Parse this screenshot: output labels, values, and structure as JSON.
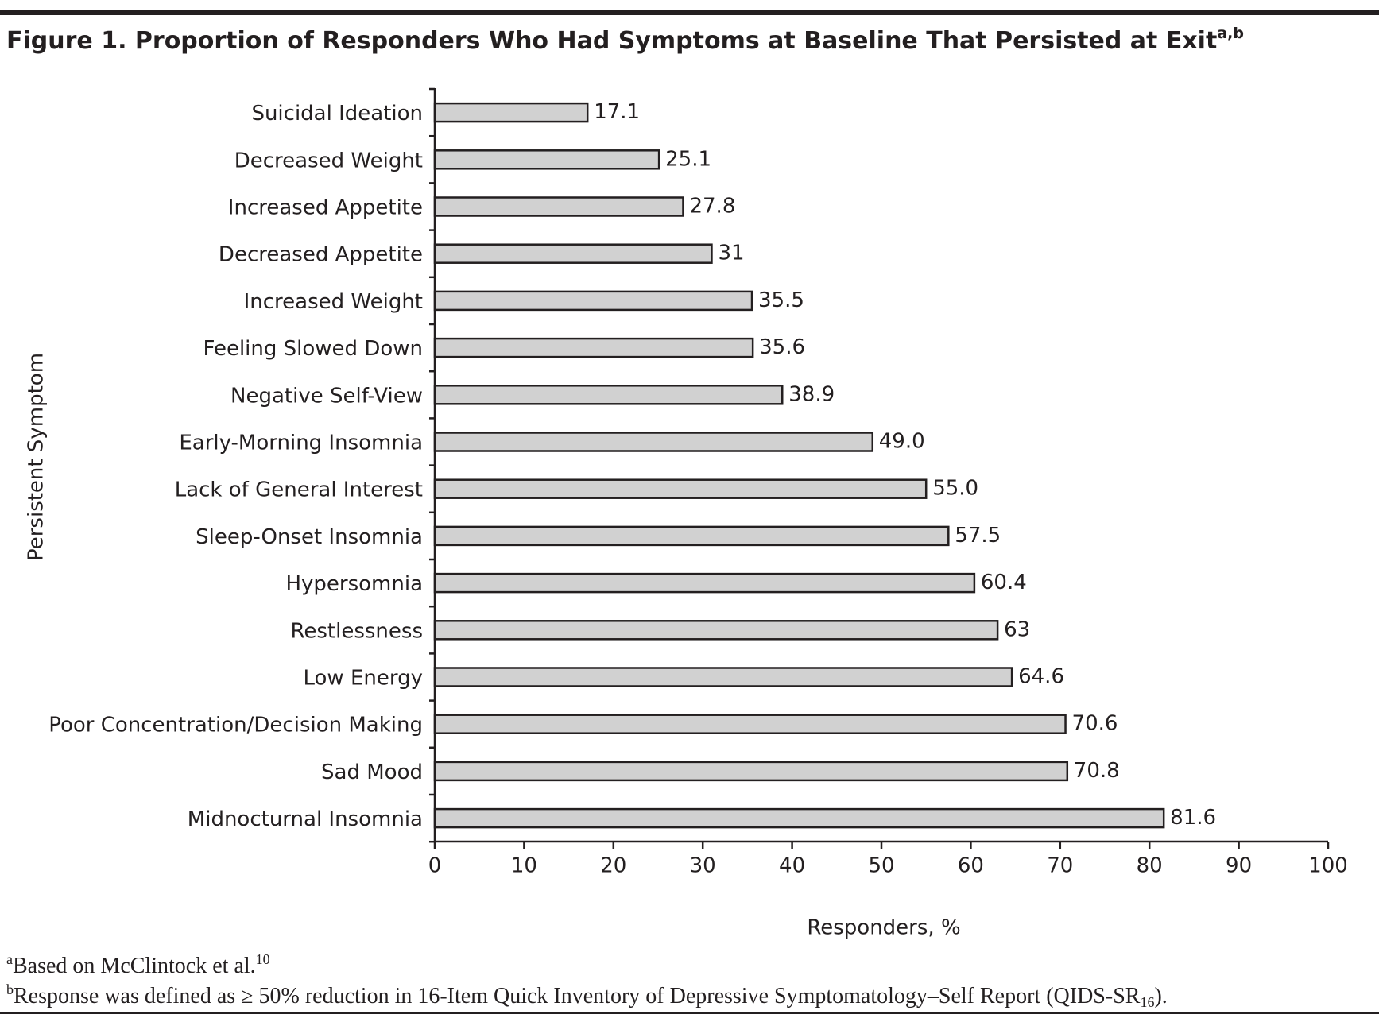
{
  "chart_data": {
    "type": "bar",
    "orientation": "horizontal",
    "title": "Figure 1. Proportion of Responders Who Had Symptoms at Baseline That Persisted at Exit",
    "title_superscript": "a,b",
    "x_label": "Responders, %",
    "y_label": "Persistent Symptom",
    "categories": [
      "Suicidal Ideation",
      "Decreased Weight",
      "Increased Appetite",
      "Decreased Appetite",
      "Increased Weight",
      "Feeling Slowed Down",
      "Negative Self-View",
      "Early-Morning Insomnia",
      "Lack of General Interest",
      "Sleep-Onset Insomnia",
      "Hypersomnia",
      "Restlessness",
      "Low Energy",
      "Poor Concentration/Decision Making",
      "Sad Mood",
      "Midnocturnal Insomnia"
    ],
    "values": [
      17.1,
      25.1,
      27.8,
      31,
      35.5,
      35.6,
      38.9,
      49.0,
      55.0,
      57.5,
      60.4,
      63,
      64.6,
      70.6,
      70.8,
      81.6
    ],
    "value_labels": [
      "17.1",
      "25.1",
      "27.8",
      "31",
      "35.5",
      "35.6",
      "38.9",
      "49.0",
      "55.0",
      "57.5",
      "60.4",
      "63",
      "64.6",
      "70.6",
      "70.8",
      "81.6"
    ],
    "color": "#d1d1d1",
    "xlim": [
      0,
      100
    ],
    "xticks": [
      0,
      10,
      20,
      30,
      40,
      50,
      60,
      70,
      80,
      90,
      100
    ],
    "footnotes": [
      {
        "marker": "a",
        "text": "Based on McClintock et al.",
        "ref": "10"
      },
      {
        "marker": "b",
        "text": "Response was defined as ≥ 50% reduction in 16-Item Quick Inventory of Depressive Symptomatology–Self Report (QIDS-SR",
        "sub": "16",
        "end": ")."
      }
    ]
  }
}
